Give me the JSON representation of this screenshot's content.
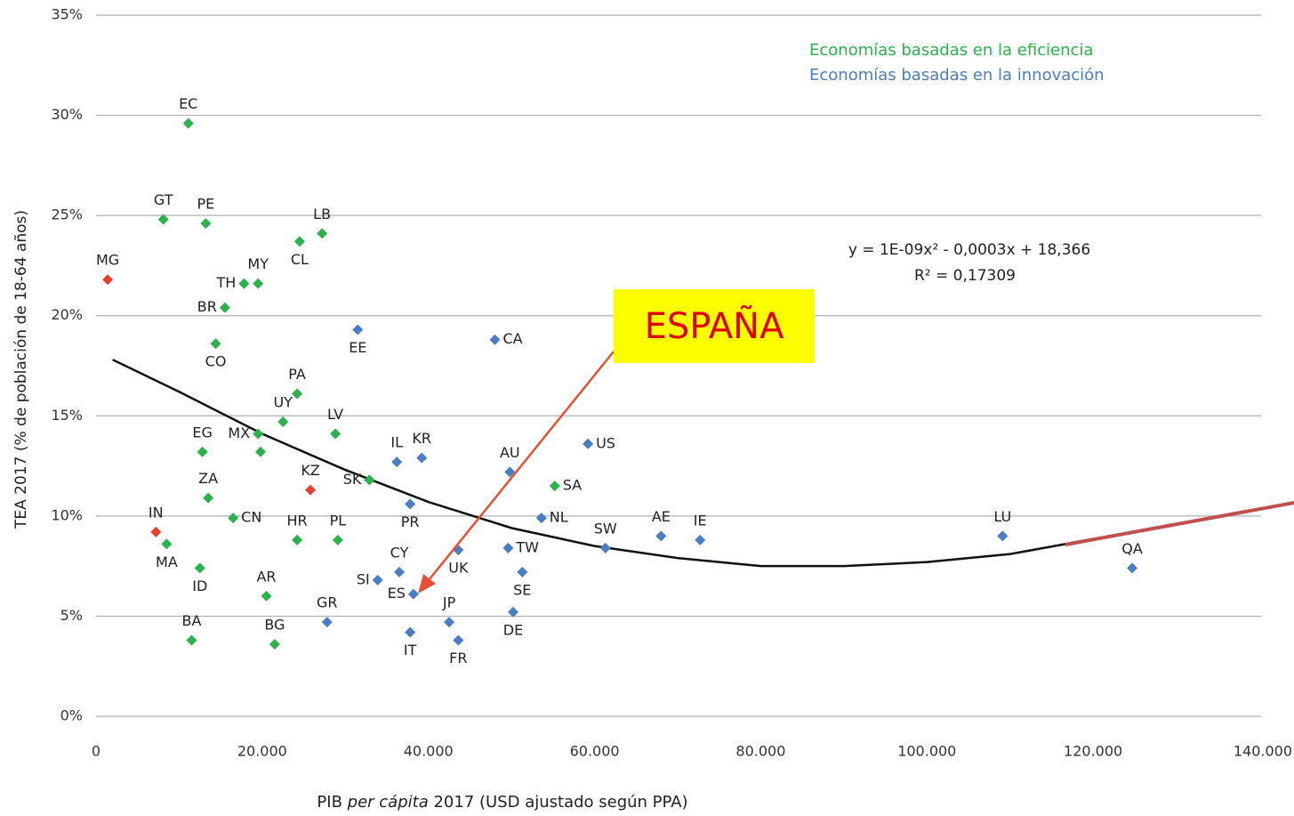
{
  "chart_data": {
    "type": "scatter",
    "xlabel": [
      "PIB ",
      "per cápita",
      " 2017 (USD ajustado según PPA)"
    ],
    "ylabel": "TEA 2017 (% de población de 18-64 años)",
    "xlim": [
      0,
      140000
    ],
    "ylim": [
      0,
      35
    ],
    "xticks": [
      0,
      {
        "value": 20000,
        "label": "20.000"
      },
      {
        "value": 40000,
        "label": "40.000"
      },
      {
        "value": 60000,
        "label": "60.000"
      },
      {
        "value": 80000,
        "label": "80.000"
      },
      {
        "value": 100000,
        "label": "100.000"
      },
      {
        "value": 120000,
        "label": "120.000"
      },
      {
        "value": 140000,
        "label": "140.000"
      }
    ],
    "yticks": [
      {
        "value": 0,
        "label": "0%"
      },
      {
        "value": 5,
        "label": "5%"
      },
      {
        "value": 10,
        "label": "10%"
      },
      {
        "value": 15,
        "label": "15%"
      },
      {
        "value": 20,
        "label": "20%"
      },
      {
        "value": 25,
        "label": "25%"
      },
      {
        "value": 30,
        "label": "30%"
      },
      {
        "value": 35,
        "label": "35%"
      }
    ],
    "grid": true,
    "legend": "top-right",
    "series": [
      {
        "name": "Economías basadas en la eficiencia",
        "color": "#2bb24c",
        "labels": [
          "EC",
          "GT",
          "PE",
          "TH",
          "MY",
          "BR",
          "CL",
          "LB",
          "CO",
          "PA",
          "MX",
          "UY",
          "LV",
          "EG",
          null,
          "SK",
          "SA",
          "ZA",
          "CN",
          "MA",
          "HR",
          "PL",
          "ID",
          "AR",
          "BA",
          "BG"
        ],
        "x": [
          11100,
          8100,
          13200,
          17800,
          19500,
          15500,
          24500,
          27200,
          14400,
          24200,
          19500,
          22500,
          28800,
          12800,
          19800,
          32900,
          55200,
          13500,
          16500,
          8500,
          24200,
          29100,
          12500,
          20500,
          11500,
          21500
        ],
        "values": [
          29.6,
          24.8,
          24.6,
          21.6,
          21.6,
          20.4,
          23.7,
          24.1,
          18.6,
          16.1,
          14.1,
          14.7,
          14.1,
          13.2,
          13.2,
          11.8,
          11.5,
          10.9,
          9.9,
          8.6,
          8.8,
          8.8,
          7.4,
          6.0,
          3.8,
          3.6
        ]
      },
      {
        "name": "Economías basadas en la innovación",
        "color": "#4a7ec4",
        "labels": [
          "EE",
          "CA",
          "IL",
          "KR",
          "AU",
          "US",
          "PR",
          "NL",
          "SW",
          "TW",
          "AE",
          "IE",
          "LU",
          "QA",
          "UK",
          "CY",
          "SE",
          "SI",
          "ES",
          "GR",
          "JP",
          "DE",
          "IT",
          "FR"
        ],
        "x": [
          31500,
          48000,
          36200,
          39200,
          49800,
          59200,
          37800,
          53600,
          61300,
          49600,
          68000,
          72700,
          109100,
          124700,
          43600,
          36500,
          51300,
          33900,
          38200,
          27800,
          42500,
          50200,
          37800,
          43600
        ],
        "values": [
          19.3,
          18.8,
          12.7,
          12.9,
          12.2,
          13.6,
          10.6,
          9.9,
          8.4,
          8.4,
          9.0,
          8.8,
          9.0,
          7.4,
          8.3,
          7.2,
          7.2,
          6.8,
          6.1,
          4.7,
          4.7,
          5.2,
          4.2,
          3.8
        ]
      },
      {
        "color": "#e8402f",
        "labels": [
          "MG",
          "KZ",
          "IN"
        ],
        "x": [
          1400,
          25800,
          7200
        ],
        "values": [
          21.8,
          11.3,
          9.2
        ]
      }
    ],
    "trend": {
      "color": "#111111",
      "x": [
        2000,
        10000,
        20000,
        30000,
        40000,
        50000,
        60000,
        70000,
        80000,
        90000,
        100000,
        110000,
        122000
      ],
      "values": [
        17.8,
        16.2,
        14.1,
        12.3,
        10.7,
        9.4,
        8.5,
        7.9,
        7.5,
        7.5,
        7.7,
        8.1,
        9.0
      ]
    },
    "annotations": [
      "y = 1E-09x² - 0,0003x + 18,366",
      "R² = 0,17309",
      "ESPAÑA"
    ]
  }
}
